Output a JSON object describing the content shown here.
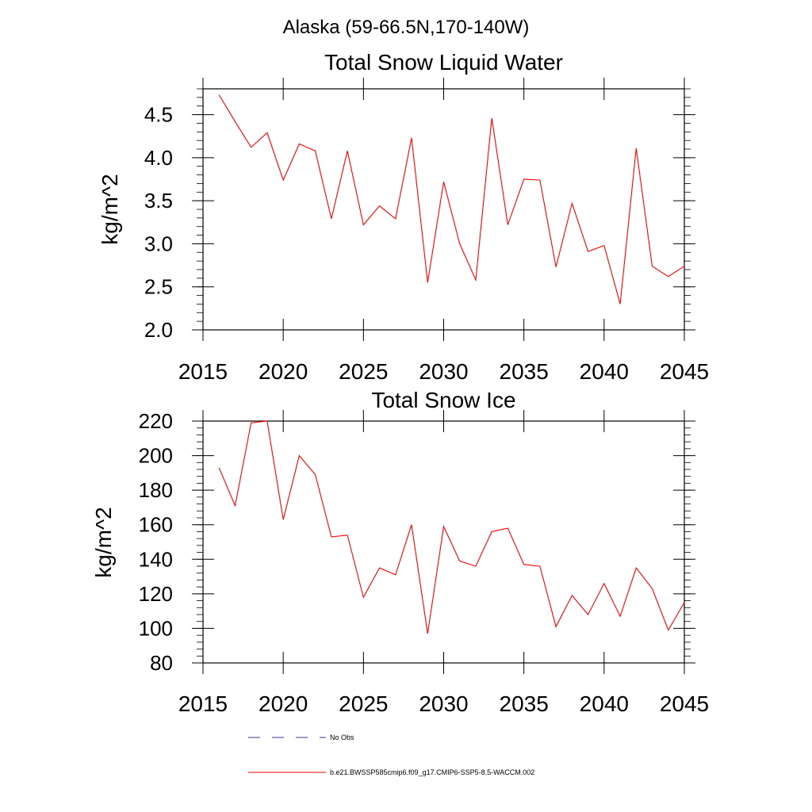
{
  "figure": {
    "title": "Alaska (59-66.5N,170-140W)"
  },
  "legend": {
    "entries": [
      {
        "label": "No Obs",
        "color": "#3a3a8c",
        "style": "dashed"
      },
      {
        "label": "b.e21.BWSSP585cmip6.f09_g17.CMIP6-SSP5-8.5-WACCM.002",
        "color": "#ff0000",
        "style": "solid"
      }
    ]
  },
  "chart_data": [
    {
      "type": "line",
      "title": "Total Snow Liquid Water",
      "xlabel": "",
      "ylabel": "kg/m^2",
      "xlim": [
        2015,
        2045
      ],
      "ylim": [
        2.0,
        4.8
      ],
      "xticks": [
        2015,
        2020,
        2025,
        2030,
        2035,
        2040,
        2045
      ],
      "xtick_labels": [
        "2015",
        "2020",
        "2025",
        "2030",
        "2035",
        "2040",
        "2045"
      ],
      "yticks": [
        2.0,
        2.5,
        3.0,
        3.5,
        4.0,
        4.5
      ],
      "ytick_labels": [
        "2.0",
        "2.5",
        "3.0",
        "3.5",
        "4.0",
        "4.5"
      ],
      "grid": false,
      "series": [
        {
          "color": "#ff0000",
          "x": [
            2016,
            2017,
            2018,
            2019,
            2020,
            2021,
            2022,
            2023,
            2024,
            2025,
            2026,
            2027,
            2028,
            2029,
            2030,
            2031,
            2032,
            2033,
            2034,
            2035,
            2036,
            2037,
            2038,
            2039,
            2040,
            2041,
            2042,
            2043,
            2044,
            2045
          ],
          "values": [
            4.73,
            4.42,
            4.12,
            4.29,
            3.74,
            4.16,
            4.08,
            3.29,
            4.08,
            3.22,
            3.44,
            3.29,
            4.23,
            2.55,
            3.72,
            3.0,
            2.58,
            4.46,
            3.22,
            3.75,
            3.74,
            2.73,
            3.47,
            2.91,
            2.98,
            2.3,
            4.11,
            2.74,
            2.62,
            2.74
          ]
        }
      ]
    },
    {
      "type": "line",
      "title": "Total Snow Ice",
      "xlabel": "",
      "ylabel": "kg/m^2",
      "xlim": [
        2015,
        2045
      ],
      "ylim": [
        80,
        220
      ],
      "xticks": [
        2015,
        2020,
        2025,
        2030,
        2035,
        2040,
        2045
      ],
      "xtick_labels": [
        "2015",
        "2020",
        "2025",
        "2030",
        "2035",
        "2040",
        "2045"
      ],
      "yticks": [
        80,
        100,
        120,
        140,
        160,
        180,
        200,
        220
      ],
      "ytick_labels": [
        "80",
        "100",
        "120",
        "140",
        "160",
        "180",
        "200",
        "220"
      ],
      "grid": false,
      "series": [
        {
          "color": "#ff0000",
          "x": [
            2016,
            2017,
            2018,
            2019,
            2020,
            2021,
            2022,
            2023,
            2024,
            2025,
            2026,
            2027,
            2028,
            2029,
            2030,
            2031,
            2032,
            2033,
            2034,
            2035,
            2036,
            2037,
            2038,
            2039,
            2040,
            2041,
            2042,
            2043,
            2044,
            2045
          ],
          "values": [
            193,
            171,
            219,
            220,
            163,
            200,
            189,
            153,
            154,
            118,
            135,
            131,
            160,
            97,
            159,
            139,
            136,
            156,
            158,
            137,
            136,
            101,
            119,
            108,
            126,
            107,
            135,
            123,
            99,
            115
          ]
        }
      ]
    }
  ]
}
